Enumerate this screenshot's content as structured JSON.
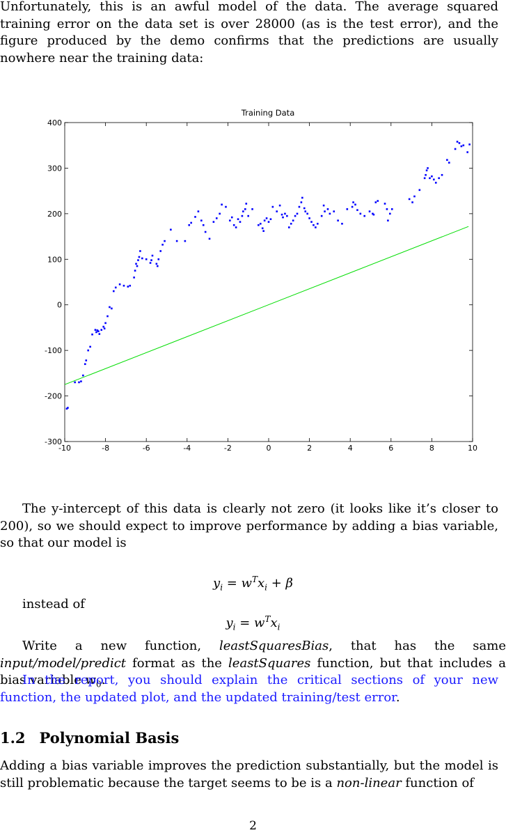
{
  "intro_paragraph": "Unfortunately, this is an awful model of the data. The average squared training error on the data set is over 28000 (as is the test error), and the figure produced by the demo confirms that the predictions are usually nowhere near the training data:",
  "chart_data": {
    "type": "scatter",
    "title": "Training Data",
    "xlabel": "",
    "ylabel": "",
    "xlim": [
      -10,
      10
    ],
    "ylim": [
      -300,
      400
    ],
    "xticks": [
      -10,
      -8,
      -6,
      -4,
      -2,
      0,
      2,
      4,
      6,
      8,
      10
    ],
    "yticks": [
      -300,
      -200,
      -100,
      0,
      100,
      200,
      300,
      400
    ],
    "grid": false,
    "series": [
      {
        "color": "#0000ff",
        "marker": "dot",
        "points": [
          [
            -9.9,
            -228
          ],
          [
            -9.85,
            -226
          ],
          [
            -9.5,
            -170
          ],
          [
            -9.3,
            -170
          ],
          [
            -9.2,
            -168
          ],
          [
            -9.1,
            -155
          ],
          [
            -9.0,
            -130
          ],
          [
            -8.95,
            -122
          ],
          [
            -8.85,
            -100
          ],
          [
            -8.75,
            -92
          ],
          [
            -8.65,
            -65
          ],
          [
            -8.5,
            -55
          ],
          [
            -8.45,
            -60
          ],
          [
            -8.4,
            -56
          ],
          [
            -8.35,
            -58
          ],
          [
            -8.3,
            -64
          ],
          [
            -8.2,
            -55
          ],
          [
            -8.1,
            -48
          ],
          [
            -8.05,
            -52
          ],
          [
            -8.0,
            -40
          ],
          [
            -7.9,
            -25
          ],
          [
            -7.8,
            -5
          ],
          [
            -7.7,
            -8
          ],
          [
            -7.6,
            30
          ],
          [
            -7.5,
            38
          ],
          [
            -7.3,
            45
          ],
          [
            -7.1,
            42
          ],
          [
            -6.9,
            40
          ],
          [
            -6.8,
            42
          ],
          [
            -6.6,
            60
          ],
          [
            -6.55,
            75
          ],
          [
            -6.5,
            90
          ],
          [
            -6.45,
            85
          ],
          [
            -6.4,
            98
          ],
          [
            -6.35,
            105
          ],
          [
            -6.3,
            118
          ],
          [
            -6.2,
            102
          ],
          [
            -6.0,
            100
          ],
          [
            -5.8,
            92
          ],
          [
            -5.75,
            98
          ],
          [
            -5.7,
            108
          ],
          [
            -5.5,
            90
          ],
          [
            -5.45,
            85
          ],
          [
            -5.4,
            100
          ],
          [
            -5.3,
            118
          ],
          [
            -5.2,
            132
          ],
          [
            -5.1,
            140
          ],
          [
            -4.8,
            165
          ],
          [
            -4.5,
            140
          ],
          [
            -4.1,
            140
          ],
          [
            -3.9,
            175
          ],
          [
            -3.8,
            180
          ],
          [
            -3.6,
            193
          ],
          [
            -3.45,
            205
          ],
          [
            -3.3,
            185
          ],
          [
            -3.2,
            175
          ],
          [
            -3.1,
            160
          ],
          [
            -2.9,
            145
          ],
          [
            -2.7,
            182
          ],
          [
            -2.55,
            190
          ],
          [
            -2.4,
            200
          ],
          [
            -2.3,
            220
          ],
          [
            -2.1,
            215
          ],
          [
            -1.9,
            185
          ],
          [
            -1.8,
            192
          ],
          [
            -1.7,
            175
          ],
          [
            -1.6,
            170
          ],
          [
            -1.5,
            188
          ],
          [
            -1.4,
            182
          ],
          [
            -1.3,
            195
          ],
          [
            -1.25,
            205
          ],
          [
            -1.15,
            210
          ],
          [
            -1.1,
            222
          ],
          [
            -1.0,
            195
          ],
          [
            -0.8,
            210
          ],
          [
            -0.5,
            175
          ],
          [
            -0.4,
            178
          ],
          [
            -0.3,
            168
          ],
          [
            -0.25,
            162
          ],
          [
            -0.2,
            185
          ],
          [
            -0.1,
            190
          ],
          [
            0.0,
            182
          ],
          [
            0.1,
            188
          ],
          [
            0.2,
            215
          ],
          [
            0.4,
            205
          ],
          [
            0.55,
            218
          ],
          [
            0.65,
            198
          ],
          [
            0.7,
            192
          ],
          [
            0.8,
            200
          ],
          [
            0.9,
            195
          ],
          [
            1.0,
            170
          ],
          [
            1.1,
            178
          ],
          [
            1.2,
            185
          ],
          [
            1.3,
            195
          ],
          [
            1.4,
            200
          ],
          [
            1.5,
            215
          ],
          [
            1.6,
            225
          ],
          [
            1.65,
            235
          ],
          [
            1.75,
            212
          ],
          [
            1.8,
            205
          ],
          [
            1.9,
            200
          ],
          [
            2.0,
            190
          ],
          [
            2.1,
            182
          ],
          [
            2.2,
            175
          ],
          [
            2.3,
            170
          ],
          [
            2.4,
            178
          ],
          [
            2.6,
            195
          ],
          [
            2.7,
            218
          ],
          [
            2.75,
            205
          ],
          [
            2.9,
            210
          ],
          [
            3.0,
            200
          ],
          [
            3.2,
            205
          ],
          [
            3.4,
            185
          ],
          [
            3.6,
            178
          ],
          [
            3.85,
            210
          ],
          [
            4.1,
            215
          ],
          [
            4.15,
            225
          ],
          [
            4.25,
            220
          ],
          [
            4.35,
            208
          ],
          [
            4.5,
            200
          ],
          [
            4.7,
            195
          ],
          [
            4.95,
            205
          ],
          [
            5.1,
            200
          ],
          [
            5.15,
            198
          ],
          [
            5.25,
            225
          ],
          [
            5.35,
            228
          ],
          [
            5.7,
            222
          ],
          [
            5.8,
            210
          ],
          [
            5.85,
            185
          ],
          [
            5.95,
            200
          ],
          [
            6.05,
            210
          ],
          [
            6.9,
            232
          ],
          [
            7.05,
            225
          ],
          [
            7.15,
            238
          ],
          [
            7.4,
            252
          ],
          [
            7.65,
            278
          ],
          [
            7.7,
            285
          ],
          [
            7.75,
            295
          ],
          [
            7.8,
            300
          ],
          [
            7.9,
            278
          ],
          [
            8.0,
            282
          ],
          [
            8.1,
            275
          ],
          [
            8.2,
            268
          ],
          [
            8.35,
            278
          ],
          [
            8.5,
            285
          ],
          [
            8.75,
            318
          ],
          [
            8.85,
            312
          ],
          [
            9.15,
            342
          ],
          [
            9.25,
            358
          ],
          [
            9.35,
            355
          ],
          [
            9.45,
            348
          ],
          [
            9.55,
            350
          ],
          [
            9.75,
            335
          ],
          [
            9.85,
            352
          ]
        ]
      },
      {
        "color": "#00dd00",
        "marker": "line",
        "points": [
          [
            -10,
            -175
          ],
          [
            9.8,
            172
          ]
        ]
      }
    ]
  },
  "para2": "The y-intercept of this data is clearly not zero (it looks like it’s closer to 200), so we should expect to improve performance by adding a bias variable, so that our model is",
  "eq1": {
    "lhs": "y",
    "lhs_sub": "i",
    "eq": " = ",
    "w": "w",
    "w_sup": "T",
    "x": "x",
    "x_sub": "i",
    "plus": " + β"
  },
  "instead_of": "instead of",
  "eq2": {
    "lhs": "y",
    "lhs_sub": "i",
    "eq": " = ",
    "w": "w",
    "w_sup": "T",
    "x": "x",
    "x_sub": "i"
  },
  "para3": {
    "t1": "Write a new function, ",
    "fn1": "leastSquaresBias",
    "t2": ", that has the same ",
    "fmt": "input/model/predict",
    "t3": " format as the ",
    "fn2": "leastSquares",
    "t4": " function, but that includes a bias variable ",
    "var": "w",
    "var_sub": "0",
    "t5": "."
  },
  "report_note": "In the report, you should explain the critical sections of your new function, the updated plot, and the updated training/test error",
  "report_period": ".",
  "section": {
    "number": "1.2",
    "title": "Polynomial Basis"
  },
  "para4": {
    "t1": "Adding a bias variable improves the prediction substantially, but the model is still problematic because the target seems to be is a ",
    "em": "non-linear",
    "t2": " function of"
  },
  "page_number": "2"
}
